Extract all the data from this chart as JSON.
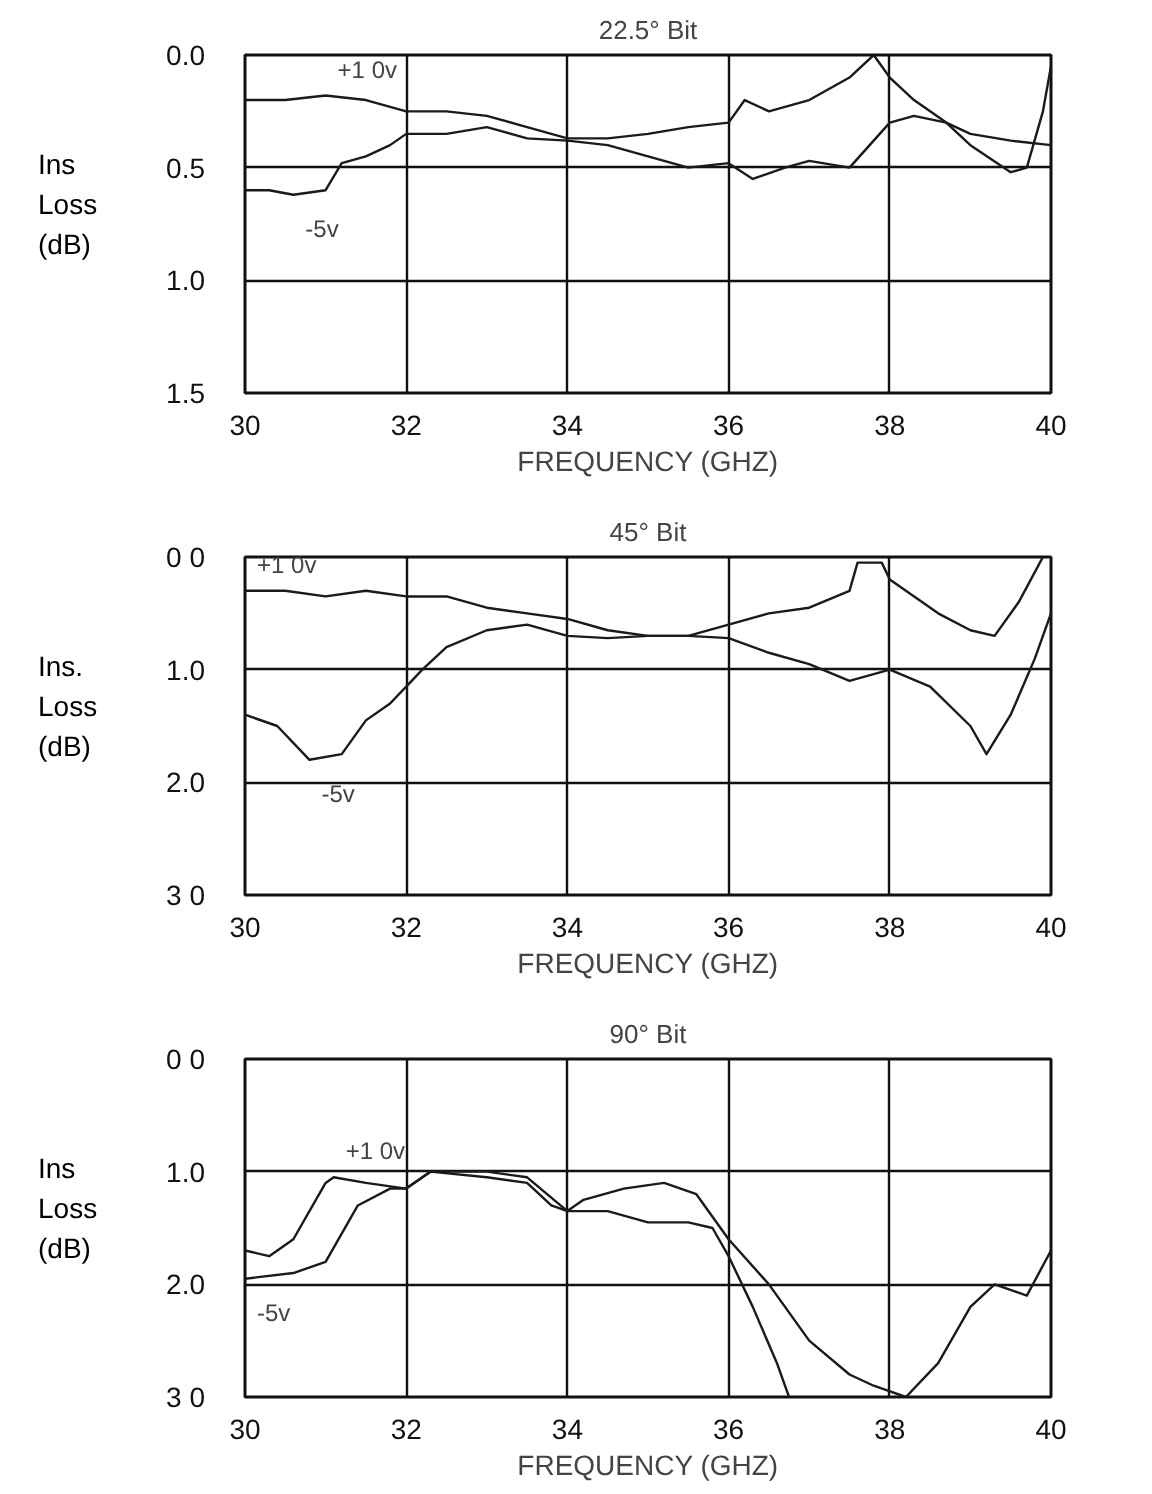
{
  "chart_data": [
    {
      "type": "line",
      "title": "22.5° Bit",
      "xlabel": "FREQUENCY (GHZ)",
      "ylabel": "Ins Loss (dB)",
      "xlim": [
        30,
        40
      ],
      "xticks": [
        30,
        32,
        34,
        36,
        38,
        40
      ],
      "ylim": [
        1.5,
        0
      ],
      "yticks": [
        {
          "value": 0,
          "label": "0.0"
        },
        {
          "value": 0.5,
          "label": "0.5"
        },
        {
          "value": 1,
          "label": "1.0"
        },
        {
          "value": 1.5,
          "label": "1.5"
        }
      ],
      "grid": true,
      "marker": "none",
      "line_style": "solid",
      "series": [
        {
          "name": "+1 0v",
          "color": "#1a1a1a",
          "x": [
            30,
            30.5,
            31,
            31.5,
            32,
            32.5,
            33,
            33.5,
            34,
            34.5,
            35,
            35.5,
            36,
            36.2,
            36.5,
            37,
            37.5,
            37.8,
            38,
            38.3,
            38.7,
            39,
            39.5,
            39.7,
            39.9,
            40
          ],
          "values": [
            0.2,
            0.2,
            0.18,
            0.2,
            0.25,
            0.25,
            0.27,
            0.32,
            0.37,
            0.37,
            0.35,
            0.32,
            0.3,
            0.2,
            0.25,
            0.2,
            0.1,
            0.0,
            0.1,
            0.2,
            0.3,
            0.4,
            0.52,
            0.5,
            0.25,
            0.05
          ]
        },
        {
          "name": "-5v",
          "color": "#1a1a1a",
          "x": [
            30,
            30.3,
            30.6,
            31,
            31.2,
            31.5,
            31.8,
            32,
            32.5,
            33,
            33.5,
            34,
            34.5,
            35,
            35.5,
            36,
            36.3,
            36.7,
            37,
            37.5,
            38,
            38.3,
            38.7,
            39,
            39.5,
            40
          ],
          "values": [
            0.6,
            0.6,
            0.62,
            0.6,
            0.48,
            0.45,
            0.4,
            0.35,
            0.35,
            0.32,
            0.37,
            0.38,
            0.4,
            0.45,
            0.5,
            0.48,
            0.55,
            0.5,
            0.47,
            0.5,
            0.3,
            0.27,
            0.3,
            0.35,
            0.38,
            0.4
          ]
        }
      ]
    },
    {
      "type": "line",
      "title": "45° Bit",
      "xlabel": "FREQUENCY (GHZ)",
      "ylabel": "Ins. Loss (dB)",
      "xlim": [
        30,
        40
      ],
      "xticks": [
        30,
        32,
        34,
        36,
        38,
        40
      ],
      "ylim": [
        3,
        0
      ],
      "yticks": [
        {
          "value": 0,
          "label": "0 0"
        },
        {
          "value": 1,
          "label": "1.0"
        },
        {
          "value": 2,
          "label": "2.0"
        },
        {
          "value": 3,
          "label": "3 0"
        }
      ],
      "grid": true,
      "marker": "none",
      "line_style": "solid",
      "series": [
        {
          "name": "+1 0v",
          "color": "#1a1a1a",
          "x": [
            30,
            30.5,
            31,
            31.5,
            32,
            32.5,
            33,
            33.5,
            34,
            34.5,
            35,
            35.5,
            36,
            36.5,
            37,
            37.5,
            37.6,
            37.9,
            38,
            38.2,
            38.6,
            39,
            39.3,
            39.6,
            39.9
          ],
          "values": [
            0.3,
            0.3,
            0.35,
            0.3,
            0.35,
            0.35,
            0.45,
            0.5,
            0.55,
            0.65,
            0.7,
            0.7,
            0.6,
            0.5,
            0.45,
            0.3,
            0.05,
            0.05,
            0.2,
            0.3,
            0.5,
            0.65,
            0.7,
            0.4,
            0.0
          ]
        },
        {
          "name": "-5v",
          "color": "#1a1a1a",
          "x": [
            30,
            30.4,
            30.8,
            31.2,
            31.5,
            31.8,
            32,
            32.2,
            32.5,
            33,
            33.5,
            34,
            34.5,
            35,
            35.5,
            36,
            36.5,
            37,
            37.5,
            38,
            38.5,
            39,
            39.2,
            39.5,
            39.8,
            40
          ],
          "values": [
            1.4,
            1.5,
            1.8,
            1.75,
            1.45,
            1.3,
            1.15,
            1.0,
            0.8,
            0.65,
            0.6,
            0.7,
            0.72,
            0.7,
            0.7,
            0.72,
            0.85,
            0.95,
            1.1,
            1.0,
            1.15,
            1.5,
            1.75,
            1.4,
            0.9,
            0.5
          ]
        }
      ]
    },
    {
      "type": "line",
      "title": "90° Bit",
      "xlabel": "FREQUENCY (GHZ)",
      "ylabel": "Ins Loss (dB)",
      "xlim": [
        30,
        40
      ],
      "xticks": [
        30,
        32,
        34,
        36,
        38,
        40
      ],
      "ylim": [
        3,
        0
      ],
      "yticks": [
        {
          "value": 0,
          "label": "0 0"
        },
        {
          "value": 1,
          "label": "1.0"
        },
        {
          "value": 2,
          "label": "2.0"
        },
        {
          "value": 3,
          "label": "3 0"
        }
      ],
      "grid": true,
      "marker": "none",
      "line_style": "solid",
      "series": [
        {
          "name": "+1 0v",
          "color": "#1a1a1a",
          "x": [
            30,
            30.3,
            30.6,
            31,
            31.1,
            31.5,
            32,
            32.3,
            33,
            33.5,
            33.8,
            34,
            34.5,
            35,
            35.5,
            35.8,
            36,
            36.3,
            36.6,
            36.75
          ],
          "values": [
            1.7,
            1.75,
            1.6,
            1.1,
            1.05,
            1.1,
            1.15,
            1.0,
            1.05,
            1.1,
            1.3,
            1.35,
            1.35,
            1.45,
            1.45,
            1.5,
            1.75,
            2.2,
            2.7,
            3.0
          ]
        },
        {
          "name": "-5v",
          "color": "#1a1a1a",
          "x": [
            30,
            30.6,
            31,
            31.4,
            31.8,
            32,
            32.3,
            33,
            33.5,
            34,
            34.2,
            34.7,
            35.2,
            35.6,
            36,
            36.5,
            37,
            37.5,
            37.8,
            38.2,
            38.6,
            39,
            39.3,
            39.7,
            40
          ],
          "values": [
            1.95,
            1.9,
            1.8,
            1.3,
            1.15,
            1.15,
            1.0,
            1.0,
            1.05,
            1.35,
            1.25,
            1.15,
            1.1,
            1.2,
            1.6,
            2.0,
            2.5,
            2.8,
            2.9,
            3.0,
            2.7,
            2.2,
            2.0,
            2.1,
            1.7
          ]
        }
      ]
    }
  ]
}
